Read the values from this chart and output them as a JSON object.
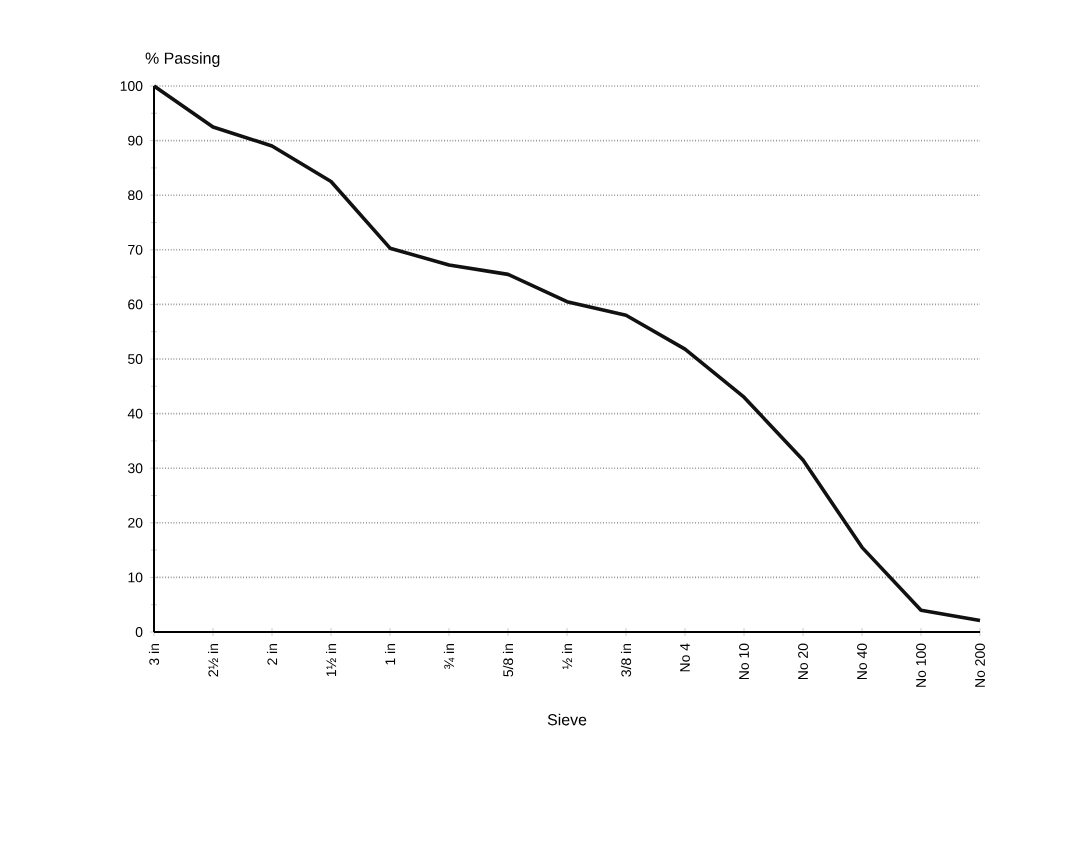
{
  "chart_data": {
    "type": "line",
    "xlabel": "Sieve",
    "ylabel": "% Passing",
    "categories": [
      "3 in",
      "2½ in",
      "2 in",
      "1½ in",
      "1 in",
      "¾ in",
      "5/8 in",
      "½ in",
      "3/8 in",
      "No 4",
      "No 10",
      "No 20",
      "No 40",
      "No 100",
      "No 200"
    ],
    "series": [
      {
        "color": "#111111",
        "values": [
          100,
          92.5,
          89,
          82.5,
          70.3,
          67.2,
          65.5,
          60.5,
          58,
          51.8,
          43,
          31.5,
          15.5,
          4,
          2.1
        ]
      }
    ],
    "ylim": [
      0,
      100
    ],
    "yticks": [
      0,
      10,
      20,
      30,
      40,
      50,
      60,
      70,
      80,
      90,
      100
    ],
    "grid": "y",
    "marker": "none",
    "line_style": "solid"
  }
}
